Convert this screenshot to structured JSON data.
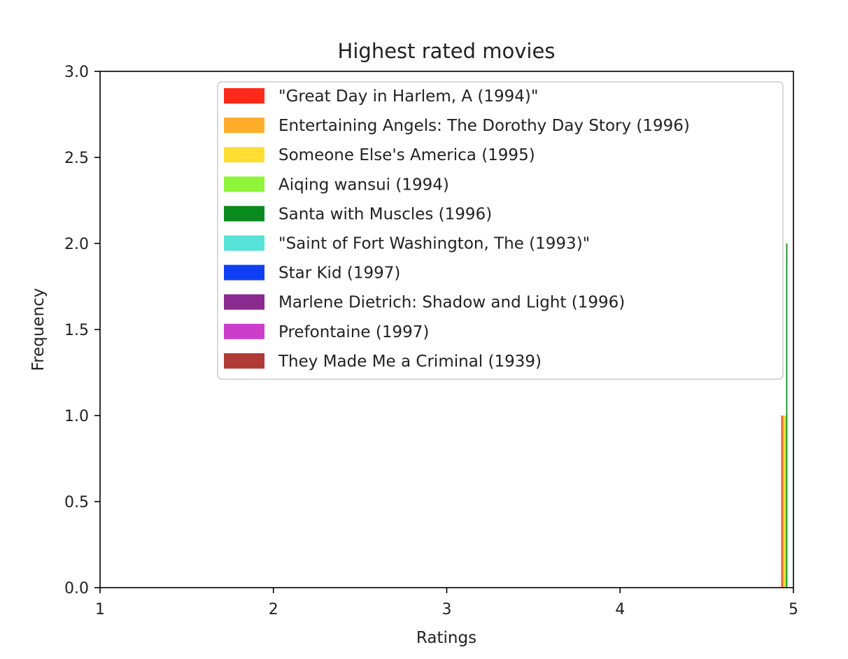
{
  "chart_data": {
    "type": "bar",
    "title": "Highest rated movies",
    "xlabel": "Ratings",
    "ylabel": "Frequency",
    "xlim": [
      1,
      5
    ],
    "ylim": [
      0,
      3
    ],
    "x_ticks": [
      "1",
      "2",
      "3",
      "4",
      "5"
    ],
    "y_ticks": [
      "0.0",
      "0.5",
      "1.0",
      "1.5",
      "2.0",
      "2.5",
      "3.0"
    ],
    "grid": false,
    "legend_position": "top-right",
    "bin_range": [
      4.93,
      5.0
    ],
    "series": [
      {
        "name": "\"Great Day in Harlem, A (1994)\"",
        "value": 1,
        "color": "#ff2a1a"
      },
      {
        "name": "Entertaining Angels: The Dorothy Day Story (1996)",
        "value": 1,
        "color": "#ffad2b"
      },
      {
        "name": "Someone Else's America (1995)",
        "value": 1,
        "color": "#ffdd33"
      },
      {
        "name": "Aiqing wansui (1994)",
        "value": 1,
        "color": "#8ef53a"
      },
      {
        "name": "Santa with Muscles (1996)",
        "value": 2,
        "color": "#0a8a1e"
      },
      {
        "name": "\"Saint of Fort Washington, The (1993)\"",
        "value": 0,
        "color": "#57e3d8"
      },
      {
        "name": "Star Kid (1997)",
        "value": 0,
        "color": "#0f3ff5"
      },
      {
        "name": "Marlene Dietrich: Shadow and Light (1996)",
        "value": 0,
        "color": "#8a2a8f"
      },
      {
        "name": "Prefontaine (1997)",
        "value": 0,
        "color": "#cc3dcc"
      },
      {
        "name": "They Made Me a Criminal (1939)",
        "value": 0,
        "color": "#b03a36"
      }
    ]
  }
}
